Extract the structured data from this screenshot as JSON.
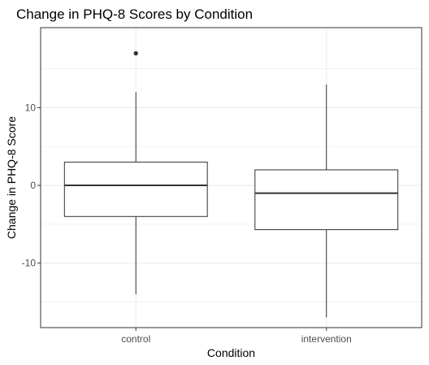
{
  "chart_data": {
    "type": "box",
    "title": "Change in PHQ-8 Scores by Condition",
    "xlabel": "Condition",
    "ylabel": "Change in PHQ-8 Score",
    "categories": [
      "control",
      "intervention"
    ],
    "boxes": [
      {
        "category": "control",
        "min": -14,
        "q1": -4,
        "median": 0,
        "q3": 3,
        "max": 12,
        "outliers": [
          17
        ]
      },
      {
        "category": "intervention",
        "min": -17,
        "q1": -5.7,
        "median": -1,
        "q3": 2,
        "max": 13,
        "outliers": []
      }
    ],
    "ylim": [
      -18.3,
      20.3
    ],
    "yticks": [
      -10,
      0,
      10
    ],
    "ytick_labels": [
      "-10",
      "0",
      "10"
    ],
    "grid": true,
    "legend": "none",
    "colors": {
      "box_fill": "#ffffff",
      "box_stroke": "#333333",
      "grid": "#ebebeb",
      "panel_border": "#333333",
      "outlier": "#333333"
    }
  }
}
